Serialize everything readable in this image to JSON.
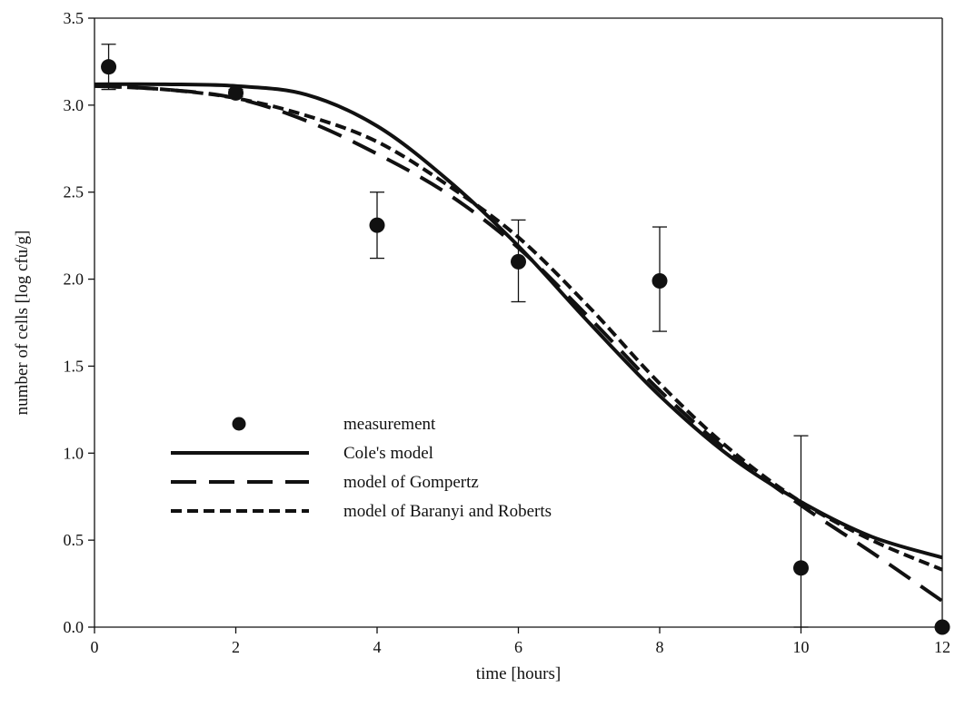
{
  "chart_data": {
    "type": "scatter",
    "xlabel": "time [hours]",
    "ylabel": "number of cells [log cfu/g]",
    "xlim": [
      0,
      12
    ],
    "ylim": [
      0,
      3.5
    ],
    "x_ticks": [
      "0",
      "2",
      "4",
      "6",
      "8",
      "10",
      "12"
    ],
    "y_ticks": [
      "0.0",
      "0.5",
      "1.0",
      "1.5",
      "2.0",
      "2.5",
      "3.0",
      "3.5"
    ],
    "grid": false,
    "legend_position": "center-left",
    "measurements": {
      "name": "measurement",
      "points": [
        {
          "x": 0.2,
          "y": 3.22,
          "err_low": 3.09,
          "err_high": 3.35
        },
        {
          "x": 2.0,
          "y": 3.07,
          "err_low": 3.05,
          "err_high": 3.09
        },
        {
          "x": 4.0,
          "y": 2.31,
          "err_low": 2.12,
          "err_high": 2.5
        },
        {
          "x": 6.0,
          "y": 2.1,
          "err_low": 1.87,
          "err_high": 2.34
        },
        {
          "x": 8.0,
          "y": 1.99,
          "err_low": 1.7,
          "err_high": 2.3
        },
        {
          "x": 10.0,
          "y": 0.34,
          "err_low": 0.0,
          "err_high": 1.1
        },
        {
          "x": 12.0,
          "y": 0.0
        }
      ]
    },
    "series": [
      {
        "name": "Cole's model",
        "style": "solid",
        "x": [
          0,
          1,
          2,
          3,
          4,
          5,
          6,
          7,
          8,
          9,
          10,
          11,
          12
        ],
        "y": [
          3.12,
          3.12,
          3.11,
          3.06,
          2.88,
          2.57,
          2.19,
          1.75,
          1.33,
          0.98,
          0.72,
          0.52,
          0.4
        ]
      },
      {
        "name": "model of Gompertz",
        "style": "long-dash",
        "x": [
          0,
          1,
          2,
          3,
          4,
          5,
          6,
          7,
          8,
          9,
          10,
          11,
          12
        ],
        "y": [
          3.11,
          3.09,
          3.04,
          2.91,
          2.72,
          2.49,
          2.18,
          1.78,
          1.36,
          1.0,
          0.7,
          0.43,
          0.15
        ]
      },
      {
        "name": "model of Baranyi and Roberts",
        "style": "short-dash",
        "x": [
          0,
          1,
          2,
          3,
          4,
          5,
          6,
          7,
          8,
          9,
          10,
          11,
          12
        ],
        "y": [
          3.11,
          3.09,
          3.04,
          2.94,
          2.79,
          2.54,
          2.24,
          1.84,
          1.4,
          1.02,
          0.72,
          0.5,
          0.33
        ]
      }
    ]
  }
}
